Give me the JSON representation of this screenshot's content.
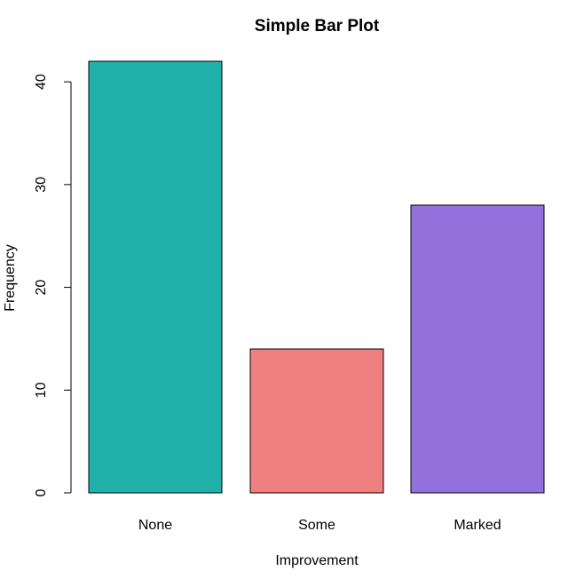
{
  "chart_data": {
    "type": "bar",
    "title": "Simple Bar Plot",
    "xlabel": "Improvement",
    "ylabel": "Frequency",
    "categories": [
      "None",
      "Some",
      "Marked"
    ],
    "values": [
      42,
      14,
      28
    ],
    "colors": [
      "#20b2aa",
      "#f08080",
      "#9370db"
    ],
    "ylim": [
      0,
      42
    ],
    "yticks": [
      0,
      10,
      20,
      30,
      40
    ]
  }
}
